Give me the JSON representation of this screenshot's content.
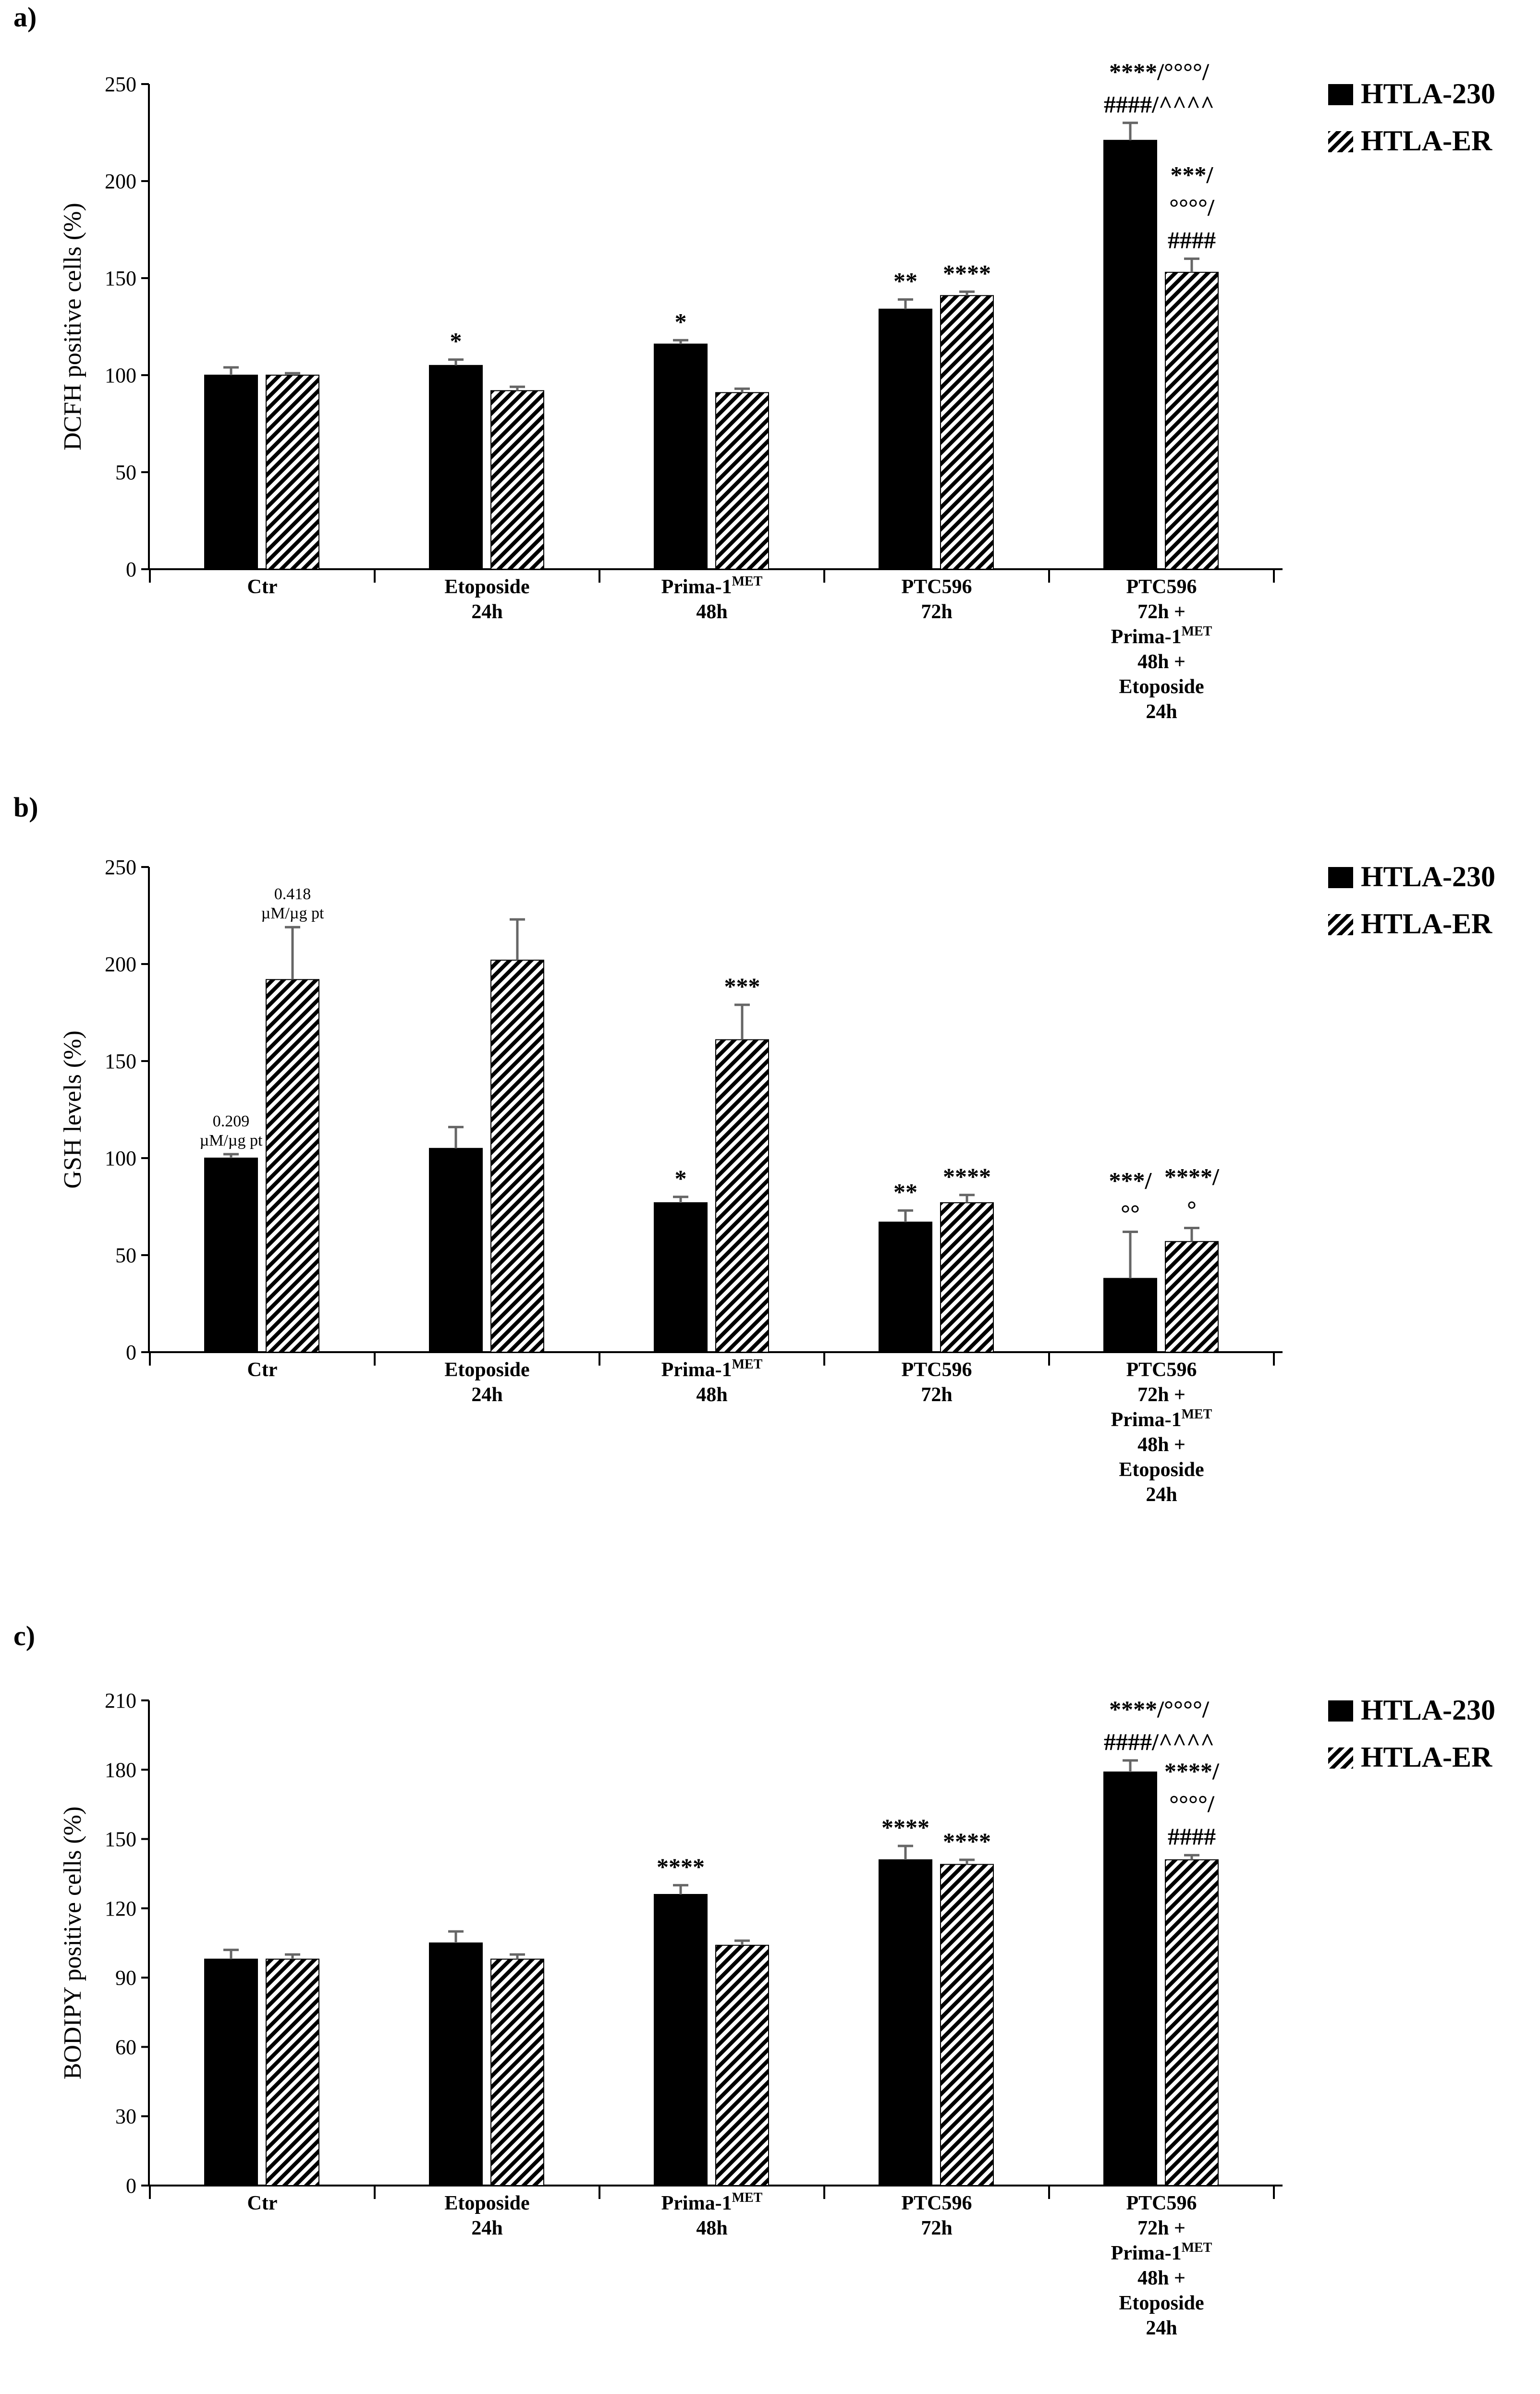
{
  "legend": {
    "series": [
      {
        "name": "HTLA-230",
        "fill": "#000000"
      },
      {
        "name": "HTLA-ER",
        "fill": "hatch"
      }
    ]
  },
  "chart_data": [
    {
      "type": "bar",
      "panel_label": "a)",
      "ylabel": "DCFH positive cells (%)",
      "ylim": [
        0,
        250
      ],
      "yticks": [
        0,
        50,
        100,
        150,
        200,
        250
      ],
      "categories": [
        [
          "Ctr"
        ],
        [
          "Etoposide",
          "24h"
        ],
        [
          "Prima-1MET",
          "48h"
        ],
        [
          "PTC596",
          "72h"
        ],
        [
          "PTC596",
          "72h +",
          "Prima-1MET",
          "48h +",
          "Etoposide",
          "24h"
        ]
      ],
      "series": [
        {
          "name": "HTLA-230",
          "values": [
            100,
            105,
            116,
            134,
            221
          ],
          "errors": [
            4,
            3,
            2,
            5,
            9
          ],
          "annotations": [
            [],
            [
              "*"
            ],
            [
              "*"
            ],
            [
              "**"
            ],
            [
              "****/°°°°/",
              "####/^^^^"
            ]
          ]
        },
        {
          "name": "HTLA-ER",
          "values": [
            100,
            92,
            91,
            141,
            153
          ],
          "errors": [
            1,
            2,
            2,
            2,
            7
          ],
          "annotations": [
            [],
            [],
            [],
            [
              "****"
            ],
            [
              "***/",
              "°°°°/",
              "####"
            ]
          ]
        }
      ],
      "data_labels": []
    },
    {
      "type": "bar",
      "panel_label": "b)",
      "ylabel": "GSH levels (%)",
      "ylim": [
        0,
        250
      ],
      "yticks": [
        0,
        50,
        100,
        150,
        200,
        250
      ],
      "categories": [
        [
          "Ctr"
        ],
        [
          "Etoposide",
          "24h"
        ],
        [
          "Prima-1MET",
          "48h"
        ],
        [
          "PTC596",
          "72h"
        ],
        [
          "PTC596",
          "72h +",
          "Prima-1MET",
          "48h +",
          "Etoposide",
          "24h"
        ]
      ],
      "series": [
        {
          "name": "HTLA-230",
          "values": [
            100,
            105,
            77,
            67,
            38
          ],
          "errors": [
            2,
            11,
            3,
            6,
            24
          ],
          "annotations": [
            [],
            [],
            [
              "*"
            ],
            [
              "**"
            ],
            [
              "***/",
              "°°"
            ]
          ]
        },
        {
          "name": "HTLA-ER",
          "values": [
            192,
            202,
            161,
            77,
            57
          ],
          "errors": [
            27,
            21,
            18,
            4,
            7
          ],
          "annotations": [
            [],
            [],
            [
              "***"
            ],
            [
              "****"
            ],
            [
              "****/",
              "°"
            ]
          ]
        }
      ],
      "data_labels": [
        {
          "category": 0,
          "series": 0,
          "lines": [
            "0.209",
            "µM/µg pt"
          ]
        },
        {
          "category": 0,
          "series": 1,
          "lines": [
            "0.418",
            "µM/µg pt"
          ]
        }
      ]
    },
    {
      "type": "bar",
      "panel_label": "c)",
      "ylabel": "BODIPY positive cells (%)",
      "ylim": [
        0,
        210
      ],
      "yticks": [
        0,
        30,
        60,
        90,
        120,
        150,
        180,
        210
      ],
      "categories": [
        [
          "Ctr"
        ],
        [
          "Etoposide",
          "24h"
        ],
        [
          "Prima-1MET",
          "48h"
        ],
        [
          "PTC596",
          "72h"
        ],
        [
          "PTC596",
          "72h +",
          "Prima-1MET",
          "48h +",
          "Etoposide",
          "24h"
        ]
      ],
      "series": [
        {
          "name": "HTLA-230",
          "values": [
            98,
            105,
            126,
            141,
            179
          ],
          "errors": [
            4,
            5,
            4,
            6,
            5
          ],
          "annotations": [
            [],
            [],
            [
              "****"
            ],
            [
              "****"
            ],
            [
              "****/°°°°/",
              "####/^^^^"
            ]
          ]
        },
        {
          "name": "HTLA-ER",
          "values": [
            98,
            98,
            104,
            139,
            141
          ],
          "errors": [
            2,
            2,
            2,
            2,
            2
          ],
          "annotations": [
            [],
            [],
            [],
            [
              "****"
            ],
            [
              "****/",
              "°°°°/",
              "####"
            ]
          ]
        }
      ],
      "data_labels": []
    }
  ]
}
